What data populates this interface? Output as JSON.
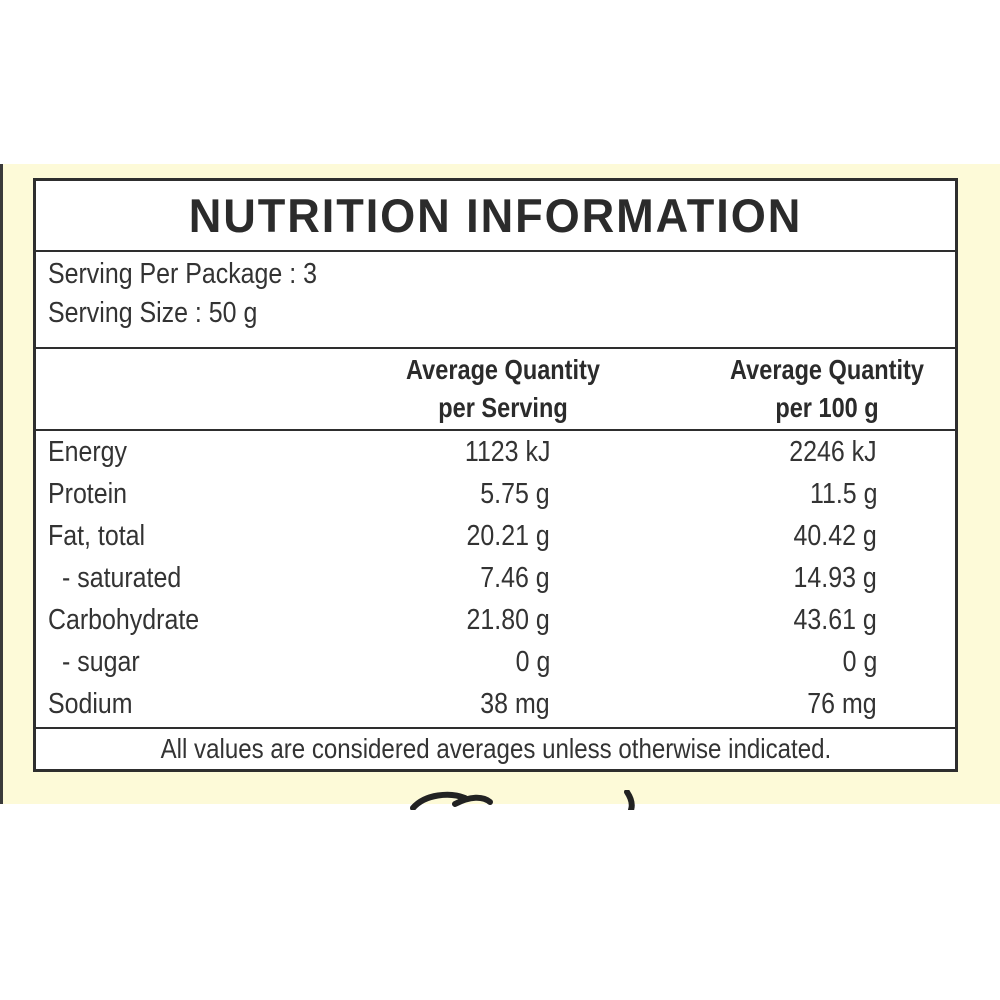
{
  "label": {
    "title": "NUTRITION INFORMATION",
    "serving_per_package": "Serving Per Package : 3",
    "serving_size": "Serving Size : 50 g",
    "column_headers": [
      {
        "line1": "Average Quantity",
        "line2": "per Serving"
      },
      {
        "line1": "Average Quantity",
        "line2": "per 100 g"
      }
    ],
    "rows": [
      {
        "name": "Energy",
        "per_serving": "1123 kJ",
        "per_100g": "2246 kJ"
      },
      {
        "name": "Protein",
        "per_serving": "5.75 g",
        "per_100g": "11.5 g"
      },
      {
        "name": "Fat, total",
        "per_serving": "20.21 g",
        "per_100g": "40.42 g"
      },
      {
        "name": "- saturated",
        "per_serving": "7.46 g",
        "per_100g": "14.93 g"
      },
      {
        "name": "Carbohydrate",
        "per_serving": "21.80 g",
        "per_100g": "43.61 g"
      },
      {
        "name": "- sugar",
        "per_serving": "0 g",
        "per_100g": "0 g"
      },
      {
        "name": "Sodium",
        "per_serving": "38 mg",
        "per_100g": "76 mg"
      }
    ],
    "footer": "All values are considered averages unless otherwise indicated."
  },
  "colors": {
    "background": "#ffffff",
    "cream_band": "#fdfad8",
    "border": "#2e2e2e",
    "text": "#2b2b2b"
  }
}
